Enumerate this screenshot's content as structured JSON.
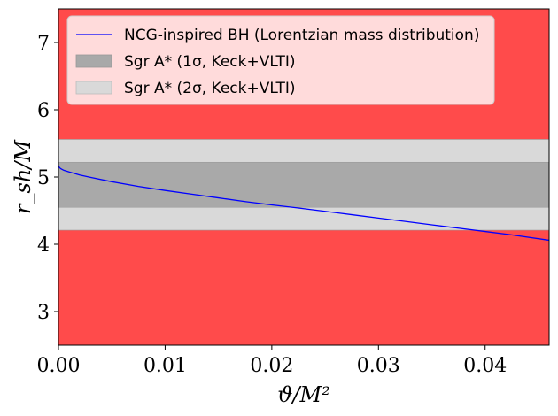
{
  "chart_data": {
    "type": "line",
    "title": "",
    "xlabel": "ϑ/M²",
    "ylabel": "r_sh/M",
    "xlim": [
      0.0,
      0.046
    ],
    "ylim": [
      2.5,
      7.5
    ],
    "xticks": [
      0.0,
      0.01,
      0.02,
      0.03,
      0.04
    ],
    "xtick_labels": [
      "0.00",
      "0.01",
      "0.02",
      "0.03",
      "0.04"
    ],
    "yticks": [
      3,
      4,
      5,
      6,
      7
    ],
    "ytick_labels": [
      "3",
      "4",
      "5",
      "6",
      "7"
    ],
    "grid": false,
    "legend_position": "top-left",
    "background_color": "#ff4b4b",
    "bands": [
      {
        "name": "Sgr A* (1σ, Keck+VLTI)",
        "low": 4.55,
        "high": 5.22,
        "color": "#a9a9a9"
      },
      {
        "name": "Sgr A* (2σ, Keck+VLTI)",
        "low": 4.21,
        "high": 5.56,
        "color": "#d9d9d9"
      }
    ],
    "series": [
      {
        "name": "NCG-inspired BH (Lorentzian mass distribution)",
        "color": "#0000ff",
        "x": [
          0.0,
          0.0002,
          0.0005,
          0.001,
          0.002,
          0.003,
          0.005,
          0.0075,
          0.01,
          0.0125,
          0.015,
          0.0175,
          0.02,
          0.0225,
          0.025,
          0.0275,
          0.03,
          0.0325,
          0.035,
          0.0375,
          0.04,
          0.0425,
          0.046
        ],
        "y": [
          5.16,
          5.125,
          5.1,
          5.075,
          5.03,
          4.995,
          4.93,
          4.86,
          4.8,
          4.745,
          4.69,
          4.635,
          4.585,
          4.54,
          4.49,
          4.44,
          4.39,
          4.34,
          4.29,
          4.24,
          4.19,
          4.14,
          4.06
        ]
      }
    ]
  },
  "legend": {
    "entries": [
      {
        "label": "NCG-inspired BH (Lorentzian mass distribution)",
        "kind": "line",
        "color": "#0000ff"
      },
      {
        "label": "Sgr A* (1σ, Keck+VLTI)",
        "kind": "patch",
        "color": "#a9a9a9"
      },
      {
        "label": "Sgr A* (2σ, Keck+VLTI)",
        "kind": "patch",
        "color": "#d9d9d9"
      }
    ]
  }
}
